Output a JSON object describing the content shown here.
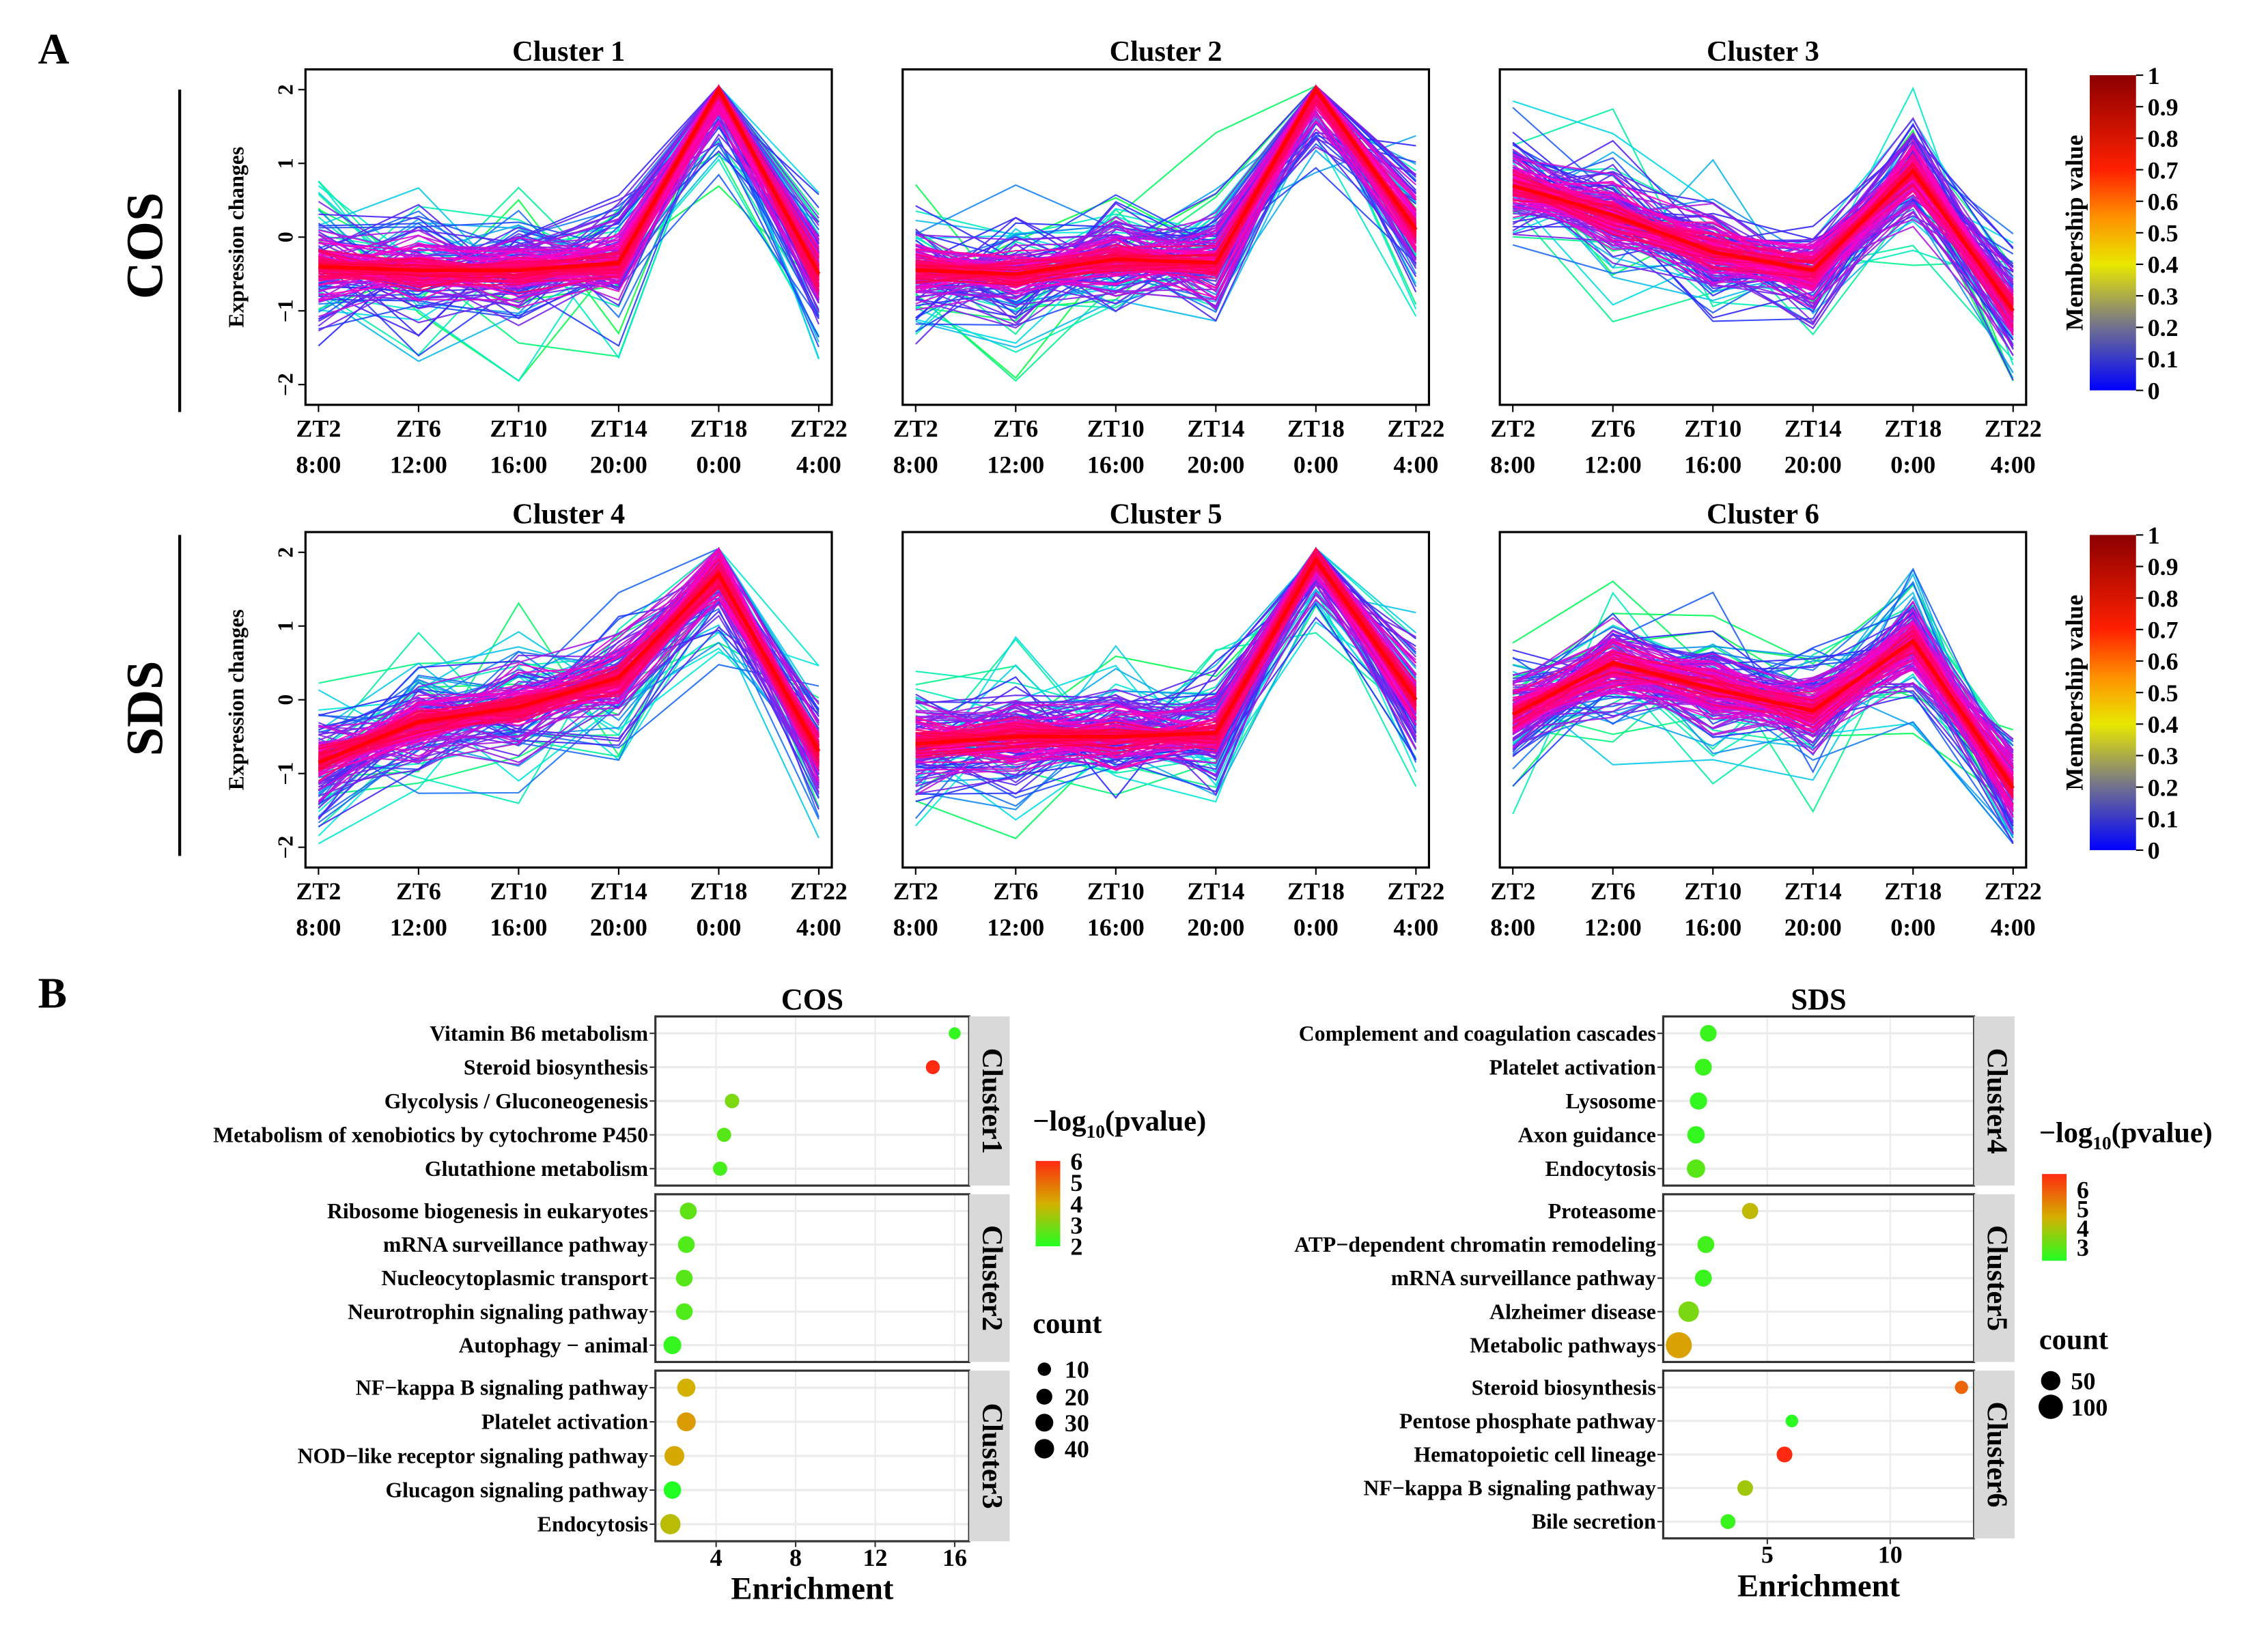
{
  "panel_labels": {
    "a": "A",
    "b": "B"
  },
  "row_labels": [
    "COS",
    "SDS"
  ],
  "colorbar": {
    "title": "Membership value",
    "ticks": [
      "0",
      "0.1",
      "0.2",
      "0.3",
      "0.4",
      "0.5",
      "0.6",
      "0.7",
      "0.8",
      "0.9",
      "1"
    ]
  },
  "chart_data": [
    {
      "type": "line",
      "description_panel": "A",
      "ylabel": "Expression changes",
      "ylim": [
        -2,
        2
      ],
      "yticks": [
        "2",
        "1",
        "0",
        "−1",
        "−2"
      ],
      "x_top": [
        "ZT2",
        "ZT6",
        "ZT10",
        "ZT14",
        "ZT18",
        "ZT22"
      ],
      "x_bottom": [
        "8:00",
        "12:00",
        "16:00",
        "20:00",
        "0:00",
        "4:00"
      ],
      "clusters": [
        {
          "title": "Cluster 1",
          "centroid": [
            -0.4,
            -0.45,
            -0.45,
            -0.35,
            2.0,
            -0.5
          ]
        },
        {
          "title": "Cluster 2",
          "centroid": [
            -0.45,
            -0.5,
            -0.3,
            -0.35,
            2.0,
            0.1
          ]
        },
        {
          "title": "Cluster 3",
          "centroid": [
            0.7,
            0.3,
            -0.2,
            -0.45,
            0.9,
            -1.0
          ]
        },
        {
          "title": "Cluster 4",
          "centroid": [
            -0.85,
            -0.3,
            -0.1,
            0.3,
            1.7,
            -0.7
          ]
        },
        {
          "title": "Cluster 5",
          "centroid": [
            -0.6,
            -0.5,
            -0.5,
            -0.45,
            1.9,
            0.0
          ]
        },
        {
          "title": "Cluster 6",
          "centroid": [
            -0.2,
            0.5,
            0.15,
            -0.15,
            0.8,
            -1.2
          ]
        }
      ]
    },
    {
      "type": "scatter",
      "description_panel": "B",
      "title": "COS",
      "xlabel": "Enrichment",
      "xticks": [
        4,
        8,
        12,
        16
      ],
      "color_title": "−log",
      "color_sub": "10",
      "color_suffix": "(pvalue)",
      "color_ticks": [
        6,
        5,
        4,
        3,
        2
      ],
      "color_range": [
        2,
        6
      ],
      "size_title": "count",
      "size_ticks": [
        10,
        20,
        30,
        40
      ],
      "facets": [
        {
          "name": "Cluster1",
          "terms": [
            {
              "term": "Vitamin B6 metabolism",
              "enrichment": 16.0,
              "logp": 2.2,
              "count": 6
            },
            {
              "term": "Steroid biosynthesis",
              "enrichment": 14.9,
              "logp": 6.0,
              "count": 12
            },
            {
              "term": "Glycolysis / Gluconeogenesis",
              "enrichment": 4.8,
              "logp": 3.0,
              "count": 14
            },
            {
              "term": "Metabolism of xenobiotics by cytochrome P450",
              "enrichment": 4.4,
              "logp": 2.6,
              "count": 13
            },
            {
              "term": "Glutathione metabolism",
              "enrichment": 4.2,
              "logp": 2.4,
              "count": 13
            }
          ]
        },
        {
          "name": "Cluster2",
          "terms": [
            {
              "term": "Ribosome biogenesis in eukaryotes",
              "enrichment": 2.6,
              "logp": 2.7,
              "count": 25
            },
            {
              "term": "mRNA surveillance pathway",
              "enrichment": 2.5,
              "logp": 2.5,
              "count": 24
            },
            {
              "term": "Nucleocytoplasmic transport",
              "enrichment": 2.4,
              "logp": 2.6,
              "count": 24
            },
            {
              "term": "Neurotrophin signaling pathway",
              "enrichment": 2.4,
              "logp": 2.5,
              "count": 24
            },
            {
              "term": "Autophagy − animal",
              "enrichment": 1.8,
              "logp": 2.2,
              "count": 30
            }
          ]
        },
        {
          "name": "Cluster3",
          "terms": [
            {
              "term": "NF−kappa B signaling pathway",
              "enrichment": 2.5,
              "logp": 4.0,
              "count": 32
            },
            {
              "term": "Platelet activation",
              "enrichment": 2.5,
              "logp": 4.3,
              "count": 36
            },
            {
              "term": "NOD−like receptor signaling pathway",
              "enrichment": 1.9,
              "logp": 4.1,
              "count": 42
            },
            {
              "term": "Glucagon signaling pathway",
              "enrichment": 1.8,
              "logp": 2.0,
              "count": 28
            },
            {
              "term": "Endocytosis",
              "enrichment": 1.7,
              "logp": 3.7,
              "count": 45
            }
          ]
        }
      ]
    },
    {
      "type": "scatter",
      "description_panel": "B",
      "title": "SDS",
      "xlabel": "Enrichment",
      "xticks": [
        5,
        10
      ],
      "color_title": "−log",
      "color_sub": "10",
      "color_suffix": "(pvalue)",
      "color_ticks": [
        6,
        5,
        4,
        3
      ],
      "color_range": [
        2.3,
        6.8
      ],
      "size_title": "count",
      "size_ticks": [
        50,
        100
      ],
      "facets": [
        {
          "name": "Cluster4",
          "terms": [
            {
              "term": "Complement and coagulation cascades",
              "enrichment": 2.6,
              "logp": 2.6,
              "count": 30
            },
            {
              "term": "Platelet activation",
              "enrichment": 2.4,
              "logp": 2.6,
              "count": 32
            },
            {
              "term": "Lysosome",
              "enrichment": 2.2,
              "logp": 2.5,
              "count": 34
            },
            {
              "term": "Axon guidance",
              "enrichment": 2.1,
              "logp": 2.5,
              "count": 35
            },
            {
              "term": "Endocytosis",
              "enrichment": 2.1,
              "logp": 3.0,
              "count": 42
            }
          ]
        },
        {
          "name": "Cluster5",
          "terms": [
            {
              "term": "Proteasome",
              "enrichment": 4.3,
              "logp": 4.3,
              "count": 28
            },
            {
              "term": "ATP−dependent chromatin remodeling",
              "enrichment": 2.5,
              "logp": 2.7,
              "count": 32
            },
            {
              "term": "mRNA surveillance pathway",
              "enrichment": 2.4,
              "logp": 2.6,
              "count": 32
            },
            {
              "term": "Alzheimer disease",
              "enrichment": 1.8,
              "logp": 3.4,
              "count": 60
            },
            {
              "term": "Metabolic pathways",
              "enrichment": 1.4,
              "logp": 4.8,
              "count": 120
            }
          ]
        },
        {
          "name": "Cluster6",
          "terms": [
            {
              "term": "Steroid biosynthesis",
              "enrichment": 12.9,
              "logp": 5.8,
              "count": 12
            },
            {
              "term": "Pentose phosphate pathway",
              "enrichment": 6.0,
              "logp": 2.4,
              "count": 10
            },
            {
              "term": "Hematopoietic cell lineage",
              "enrichment": 5.7,
              "logp": 6.8,
              "count": 25
            },
            {
              "term": "NF−kappa B signaling pathway",
              "enrichment": 4.1,
              "logp": 3.9,
              "count": 24
            },
            {
              "term": "Bile secretion",
              "enrichment": 3.4,
              "logp": 2.6,
              "count": 20
            }
          ]
        }
      ]
    }
  ]
}
